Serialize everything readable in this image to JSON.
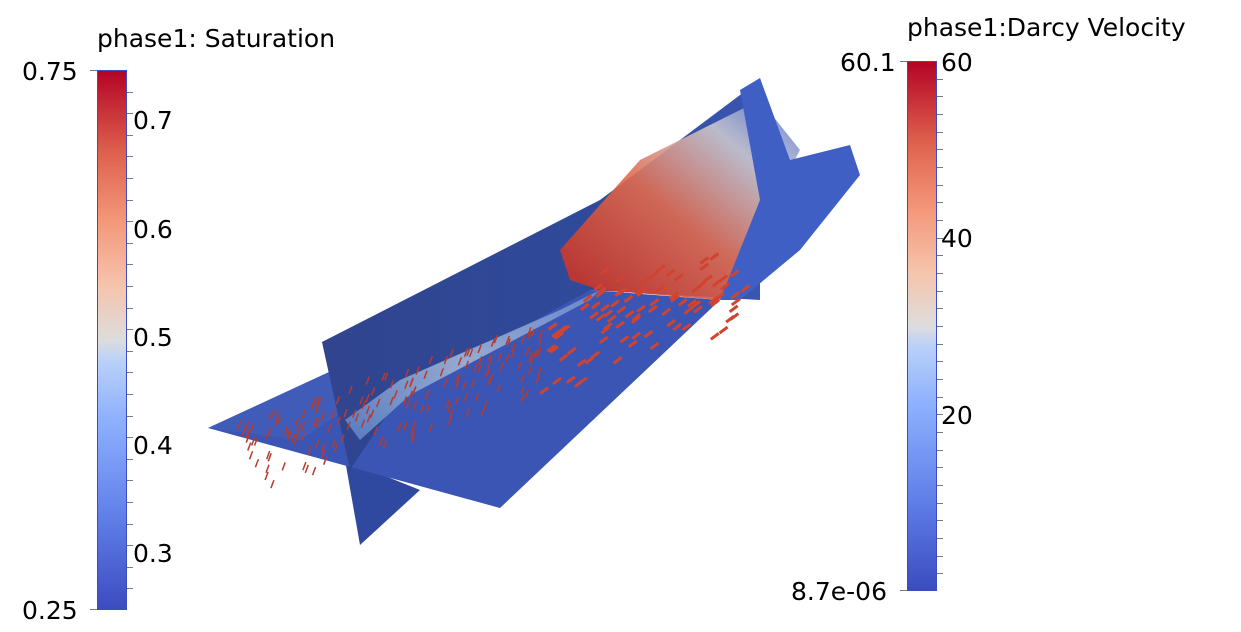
{
  "saturation_bar": {
    "title": "phase1: Saturation",
    "max_label": "0.75",
    "min_label": "0.25",
    "tick_labels": [
      "0.7",
      "0.6",
      "0.5",
      "0.4",
      "0.3"
    ],
    "min": 0.25,
    "max": 0.75
  },
  "velocity_bar": {
    "title": "phase1:Darcy Velocity",
    "max_label": "60.1",
    "min_label": "8.7e-06",
    "tick_labels": [
      "60",
      "40",
      "20"
    ],
    "min": 8.7e-06,
    "max": 60.1
  },
  "colormap": {
    "low": "#3b4cc0",
    "mid": "#dddddd",
    "high": "#b40426"
  }
}
